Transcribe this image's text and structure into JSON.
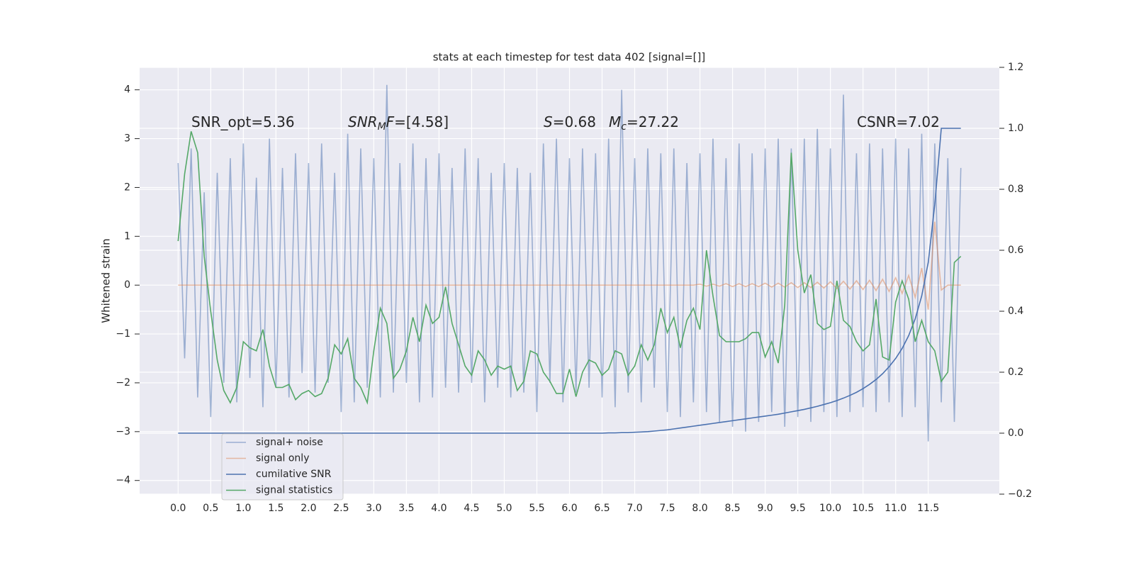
{
  "chart_data": {
    "type": "line",
    "title": "stats at each timestep for test data 402 [signal=[]]",
    "ylabel": "Whitened strain",
    "grid": true,
    "legend": "lower left",
    "xlim": [
      -0.59,
      12.59
    ],
    "ylim": [
      -4.28,
      4.46
    ],
    "y2lim": [
      -0.2,
      1.2
    ],
    "xticks": [
      {
        "value": 0,
        "label": "0.0"
      },
      0.5,
      {
        "value": 1,
        "label": "1.0"
      },
      1.5,
      {
        "value": 2,
        "label": "2.0"
      },
      2.5,
      {
        "value": 3,
        "label": "3.0"
      },
      3.5,
      {
        "value": 4,
        "label": "4.0"
      },
      4.5,
      {
        "value": 5,
        "label": "5.0"
      },
      5.5,
      {
        "value": 6,
        "label": "6.0"
      },
      6.5,
      {
        "value": 7,
        "label": "7.0"
      },
      7.5,
      {
        "value": 8,
        "label": "8.0"
      },
      8.5,
      {
        "value": 9,
        "label": "9.0"
      },
      9.5,
      {
        "value": 10,
        "label": "10.0"
      },
      10.5,
      {
        "value": 11,
        "label": "11.0"
      },
      11.5
    ],
    "yticks": [
      {
        "value": -4,
        "label": "−4"
      },
      {
        "value": -3,
        "label": "−3"
      },
      {
        "value": -2,
        "label": "−2"
      },
      {
        "value": -1,
        "label": "−1"
      },
      0,
      1,
      2,
      3,
      4
    ],
    "y2ticks": [
      {
        "value": -0.2,
        "label": "−0.2"
      },
      {
        "value": 0,
        "label": "0.0"
      },
      0.2,
      0.4,
      0.6,
      0.8,
      {
        "value": 1,
        "label": "1.0"
      },
      1.2
    ],
    "annotations": [
      {
        "parts": [
          {
            "text": "SNR_opt=5.36",
            "style": "normal"
          }
        ]
      },
      {
        "parts": [
          {
            "text": "SNR",
            "style": "italic"
          },
          {
            "text": "M",
            "style": "sub"
          },
          {
            "text": "F",
            "style": "italic"
          },
          {
            "text": "=[4.58]",
            "style": "normal"
          }
        ]
      },
      {
        "parts": [
          {
            "text": "S",
            "style": "italic"
          },
          {
            "text": "=0.68",
            "style": "normal"
          }
        ]
      },
      {
        "parts": [
          {
            "text": "M",
            "style": "italic"
          },
          {
            "text": "c",
            "style": "sub"
          },
          {
            "text": "=27.22",
            "style": "normal"
          }
        ]
      },
      {
        "parts": [
          {
            "text": "CSNR=7.02",
            "style": "normal"
          }
        ]
      }
    ],
    "x": [
      0,
      0.1,
      0.2,
      0.3,
      0.4,
      0.5,
      0.6,
      0.7,
      0.8,
      0.9,
      1,
      1.1,
      1.2,
      1.3,
      1.4,
      1.5,
      1.6,
      1.7,
      1.8,
      1.9,
      2,
      2.1,
      2.2,
      2.3,
      2.4,
      2.5,
      2.6,
      2.7,
      2.8,
      2.9,
      3,
      3.1,
      3.2,
      3.3,
      3.4,
      3.5,
      3.6,
      3.7,
      3.8,
      3.9,
      4,
      4.1,
      4.2,
      4.3,
      4.4,
      4.5,
      4.6,
      4.7,
      4.8,
      4.9,
      5,
      5.1,
      5.2,
      5.3,
      5.4,
      5.5,
      5.6,
      5.7,
      5.8,
      5.9,
      6,
      6.1,
      6.2,
      6.3,
      6.4,
      6.5,
      6.6,
      6.7,
      6.8,
      6.9,
      7,
      7.1,
      7.2,
      7.3,
      7.4,
      7.5,
      7.6,
      7.7,
      7.8,
      7.9,
      8,
      8.1,
      8.2,
      8.3,
      8.4,
      8.5,
      8.6,
      8.7,
      8.8,
      8.9,
      9,
      9.1,
      9.2,
      9.3,
      9.4,
      9.5,
      9.6,
      9.7,
      9.8,
      9.9,
      10,
      10.1,
      10.2,
      10.3,
      10.4,
      10.5,
      10.6,
      10.7,
      10.8,
      10.9,
      11,
      11.1,
      11.2,
      11.3,
      11.4,
      11.5,
      11.6,
      11.7,
      11.8,
      11.9,
      12
    ],
    "series": [
      {
        "name": "signal+ noise",
        "color": "#4c72b0",
        "opacity": 0.5,
        "axis": "y",
        "values": [
          2.5,
          -1.5,
          2.8,
          -2.3,
          1.9,
          -2.7,
          2.3,
          -2.0,
          2.6,
          -2.4,
          2.9,
          -1.9,
          2.2,
          -2.5,
          3.0,
          -2.1,
          2.4,
          -2.3,
          2.7,
          -1.8,
          2.5,
          -2.2,
          2.9,
          -2.0,
          2.3,
          -2.6,
          3.1,
          -2.4,
          2.8,
          -2.1,
          2.6,
          -2.3,
          4.1,
          -2.2,
          2.5,
          -2.0,
          2.9,
          -2.4,
          2.6,
          -2.3,
          2.7,
          -2.1,
          2.4,
          -2.2,
          2.8,
          -2.0,
          2.6,
          -2.4,
          2.3,
          -2.1,
          2.5,
          -2.3,
          2.4,
          -2.2,
          2.3,
          -2.6,
          2.9,
          -2.0,
          3.0,
          -2.4,
          2.6,
          -2.2,
          2.8,
          -2.1,
          2.7,
          -2.3,
          3.0,
          -2.5,
          4.0,
          -2.2,
          2.6,
          -2.4,
          2.8,
          -2.1,
          2.7,
          -2.6,
          2.8,
          -2.7,
          2.5,
          -2.4,
          2.7,
          -2.6,
          3.0,
          -2.8,
          2.6,
          -2.9,
          2.9,
          -3.0,
          2.7,
          -2.8,
          2.8,
          -2.6,
          3.0,
          -2.9,
          2.8,
          -2.7,
          3.0,
          -2.8,
          3.2,
          -2.6,
          2.8,
          -2.7,
          3.9,
          -2.6,
          2.7,
          -2.5,
          2.9,
          -2.6,
          2.8,
          -2.4,
          3.0,
          -2.7,
          2.8,
          -2.5,
          3.1,
          -3.2,
          2.9,
          -2.4,
          2.6,
          -2.8,
          2.4
        ]
      },
      {
        "name": "signal only",
        "color": "#dd8452",
        "opacity": 0.5,
        "axis": "y",
        "values": [
          0,
          0,
          0,
          0,
          0,
          0,
          0,
          0,
          0,
          0,
          0,
          0,
          0,
          0,
          0,
          0,
          0,
          0,
          0,
          0,
          0,
          0,
          0,
          0,
          0,
          0,
          0,
          0,
          0,
          0,
          0,
          0,
          0,
          0,
          0,
          0,
          0,
          0,
          0,
          0,
          0,
          0,
          0,
          0,
          0,
          0,
          0,
          0,
          0,
          0,
          0,
          0,
          0,
          0,
          0,
          0,
          0,
          0,
          0,
          0,
          0,
          0,
          0,
          0,
          0,
          0,
          0,
          0,
          0,
          0,
          0,
          0,
          0,
          0,
          0,
          0,
          0,
          0,
          0,
          0,
          0.02,
          -0.02,
          0.02,
          -0.02,
          0.03,
          -0.03,
          0.03,
          -0.03,
          0.03,
          -0.03,
          0.04,
          -0.04,
          0.04,
          -0.04,
          0.05,
          -0.05,
          0.05,
          -0.05,
          0.06,
          -0.06,
          0.07,
          -0.07,
          0.08,
          -0.08,
          0.09,
          -0.09,
          0.1,
          -0.11,
          0.12,
          -0.13,
          0.15,
          -0.17,
          0.2,
          -0.25,
          0.35,
          -0.5,
          1.3,
          -0.1,
          0,
          0,
          0
        ]
      },
      {
        "name": "cumilative SNR",
        "color": "#4c72b0",
        "opacity": 1,
        "axis": "y2",
        "values": [
          0,
          0,
          0,
          0,
          0,
          0,
          0,
          0,
          0,
          0,
          0,
          0,
          0,
          0,
          0,
          0,
          0,
          0,
          0,
          0,
          0,
          0,
          0,
          0,
          0,
          0,
          0,
          0,
          0,
          0,
          0,
          0,
          0,
          0,
          0,
          0,
          0,
          0,
          0,
          0,
          0,
          0,
          0,
          0,
          0,
          0,
          0,
          0,
          0,
          0,
          0,
          0,
          0,
          0,
          0,
          0,
          0,
          0,
          0,
          0,
          0,
          0,
          0,
          0,
          0,
          0,
          0.001,
          0.001,
          0.002,
          0.002,
          0.003,
          0.004,
          0.005,
          0.007,
          0.009,
          0.011,
          0.014,
          0.017,
          0.02,
          0.023,
          0.026,
          0.029,
          0.032,
          0.035,
          0.038,
          0.041,
          0.044,
          0.047,
          0.05,
          0.053,
          0.056,
          0.059,
          0.062,
          0.066,
          0.07,
          0.074,
          0.078,
          0.083,
          0.088,
          0.094,
          0.1,
          0.107,
          0.115,
          0.124,
          0.134,
          0.146,
          0.16,
          0.176,
          0.195,
          0.218,
          0.245,
          0.278,
          0.32,
          0.375,
          0.45,
          0.56,
          0.75,
          1.0,
          1.0,
          1.0,
          1.0
        ]
      },
      {
        "name": "signal statistics",
        "color": "#55a868",
        "opacity": 1,
        "axis": "y2",
        "values": [
          0.63,
          0.85,
          0.99,
          0.92,
          0.58,
          0.4,
          0.24,
          0.14,
          0.1,
          0.15,
          0.3,
          0.28,
          0.27,
          0.34,
          0.22,
          0.15,
          0.15,
          0.16,
          0.11,
          0.13,
          0.14,
          0.12,
          0.13,
          0.18,
          0.29,
          0.26,
          0.31,
          0.18,
          0.15,
          0.1,
          0.27,
          0.41,
          0.36,
          0.18,
          0.21,
          0.27,
          0.38,
          0.3,
          0.42,
          0.36,
          0.38,
          0.48,
          0.36,
          0.29,
          0.22,
          0.19,
          0.27,
          0.24,
          0.19,
          0.22,
          0.21,
          0.22,
          0.14,
          0.17,
          0.27,
          0.26,
          0.2,
          0.17,
          0.13,
          0.13,
          0.21,
          0.12,
          0.2,
          0.24,
          0.23,
          0.19,
          0.21,
          0.27,
          0.26,
          0.19,
          0.22,
          0.29,
          0.24,
          0.29,
          0.41,
          0.33,
          0.38,
          0.28,
          0.37,
          0.41,
          0.34,
          0.6,
          0.45,
          0.32,
          0.3,
          0.3,
          0.3,
          0.31,
          0.33,
          0.33,
          0.25,
          0.3,
          0.23,
          0.42,
          0.92,
          0.6,
          0.46,
          0.52,
          0.36,
          0.34,
          0.35,
          0.5,
          0.37,
          0.35,
          0.3,
          0.27,
          0.29,
          0.44,
          0.25,
          0.24,
          0.43,
          0.5,
          0.44,
          0.3,
          0.37,
          0.3,
          0.27,
          0.17,
          0.2,
          0.56,
          0.58
        ]
      }
    ]
  }
}
